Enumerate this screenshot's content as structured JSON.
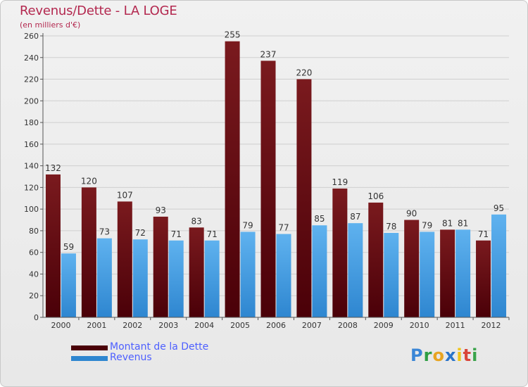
{
  "chart_title": "Revenus/Dette - LA LOGE",
  "chart_subtitle": "(en milliers d'€)",
  "logo_text": "Proxiti",
  "logo_letters": [
    {
      "ch": "P",
      "color": "#3a86d6"
    },
    {
      "ch": "r",
      "color": "#2e9e44"
    },
    {
      "ch": "o",
      "color": "#e8a421"
    },
    {
      "ch": "x",
      "color": "#2a74c9"
    },
    {
      "ch": "i",
      "color": "#f0c419"
    },
    {
      "ch": "t",
      "color": "#d9453a"
    },
    {
      "ch": "i",
      "color": "#3aa34a"
    }
  ],
  "colors": {
    "title": "#b3284f",
    "legend_text": "#4d5fff",
    "dette_fill_top": "#7a1a1e",
    "dette_fill_bottom": "#4a0008",
    "revenus_fill_top": "#5fb2ef",
    "revenus_fill_bottom": "#2e86d0"
  },
  "chart_data": {
    "type": "bar",
    "categories": [
      "2000",
      "2001",
      "2002",
      "2003",
      "2004",
      "2005",
      "2006",
      "2007",
      "2008",
      "2009",
      "2010",
      "2011",
      "2012"
    ],
    "series": [
      {
        "name": "Montant de la Dette",
        "values": [
          132,
          120,
          107,
          93,
          83,
          255,
          237,
          220,
          119,
          106,
          90,
          81,
          71
        ]
      },
      {
        "name": "Revenus",
        "values": [
          59,
          73,
          72,
          71,
          71,
          79,
          77,
          85,
          87,
          78,
          79,
          81,
          95
        ]
      }
    ],
    "ylim": [
      0,
      260
    ],
    "ytick_step": 20,
    "grid": true,
    "legend_position": "bottom-left",
    "data_labels": true
  }
}
